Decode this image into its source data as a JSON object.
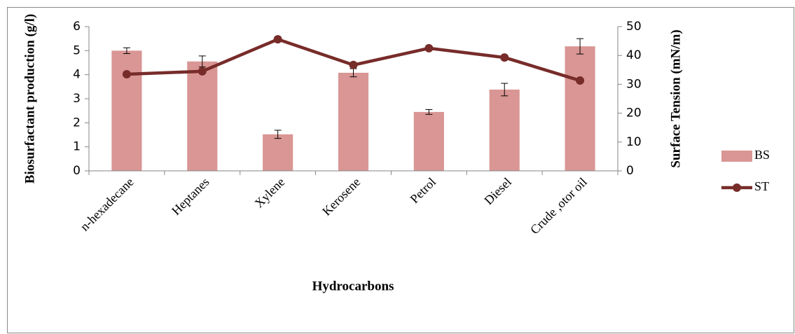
{
  "chart_data": {
    "type": "bar_line",
    "xlabel": "Hydrocarbons",
    "ylabel": "Biosurfactant production (g/l)",
    "y2label": "Surface Tension (mN/m)",
    "categories": [
      "n-hexadecane",
      "Heptanes",
      "Xylene",
      "Kerosene",
      "Petrol",
      "Diesel",
      "Crude ,otor oil"
    ],
    "series": [
      {
        "name": "BS",
        "kind": "bar",
        "color": "#d99694",
        "values": [
          5.0,
          4.55,
          1.52,
          4.08,
          2.45,
          3.38,
          5.18
        ],
        "errors": [
          0.12,
          0.23,
          0.17,
          0.17,
          0.1,
          0.26,
          0.32
        ]
      },
      {
        "name": "ST",
        "kind": "line",
        "axis": "y2",
        "color": "#772c2a",
        "values": [
          33.5,
          34.5,
          45.6,
          36.7,
          42.5,
          39.3,
          31.3
        ]
      }
    ],
    "ylim": [
      0,
      6
    ],
    "yticks": [
      0,
      1,
      2,
      3,
      4,
      5,
      6
    ],
    "y2lim": [
      0,
      50
    ],
    "y2ticks": [
      0,
      10,
      20,
      30,
      40,
      50
    ],
    "grid": false,
    "legend": "right"
  }
}
